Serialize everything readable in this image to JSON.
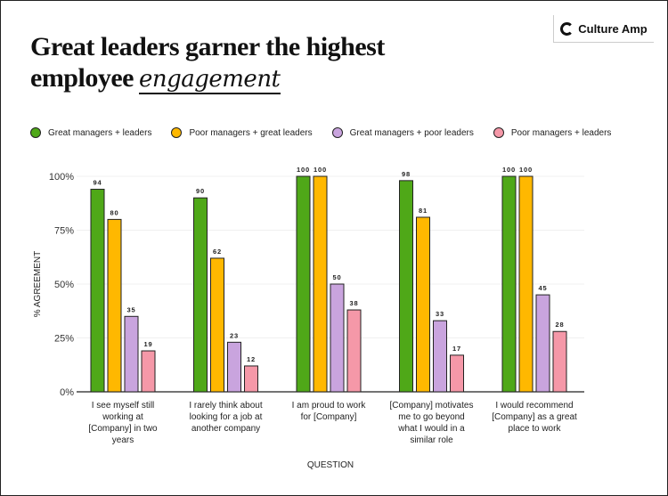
{
  "header": {
    "title_line1": "Great leaders garner the highest",
    "title_line2": "employee",
    "title_script": "engagement",
    "logo": "Culture Amp"
  },
  "chart_data": {
    "type": "bar",
    "xlabel": "QUESTION",
    "ylabel": "% AGREEMENT",
    "ylim": [
      0,
      100
    ],
    "yticks": [
      "0%",
      "25%",
      "50%",
      "75%",
      "100%"
    ],
    "legend_position": "top-left",
    "categories": [
      [
        "I see myself still",
        "working at",
        "[Company] in two",
        "years"
      ],
      [
        "I rarely think about",
        "looking for a job at",
        "another company"
      ],
      [
        "I am proud to work",
        "for [Company]"
      ],
      [
        "[Company] motivates",
        "me to go beyond",
        "what I would in a",
        "similar role"
      ],
      [
        "I would recommend",
        "[Company] as a great",
        "place to work"
      ]
    ],
    "series": [
      {
        "name": "Great managers + leaders",
        "color": "#4fa818",
        "values": [
          94,
          90,
          100,
          98,
          100
        ]
      },
      {
        "name": "Poor managers + great leaders",
        "color": "#ffb800",
        "values": [
          80,
          62,
          100,
          81,
          100
        ]
      },
      {
        "name": "Great managers + poor leaders",
        "color": "#c9a4de",
        "values": [
          35,
          23,
          50,
          33,
          45
        ]
      },
      {
        "name": "Poor managers + leaders",
        "color": "#f598a8",
        "values": [
          19,
          12,
          38,
          17,
          28
        ]
      }
    ]
  }
}
